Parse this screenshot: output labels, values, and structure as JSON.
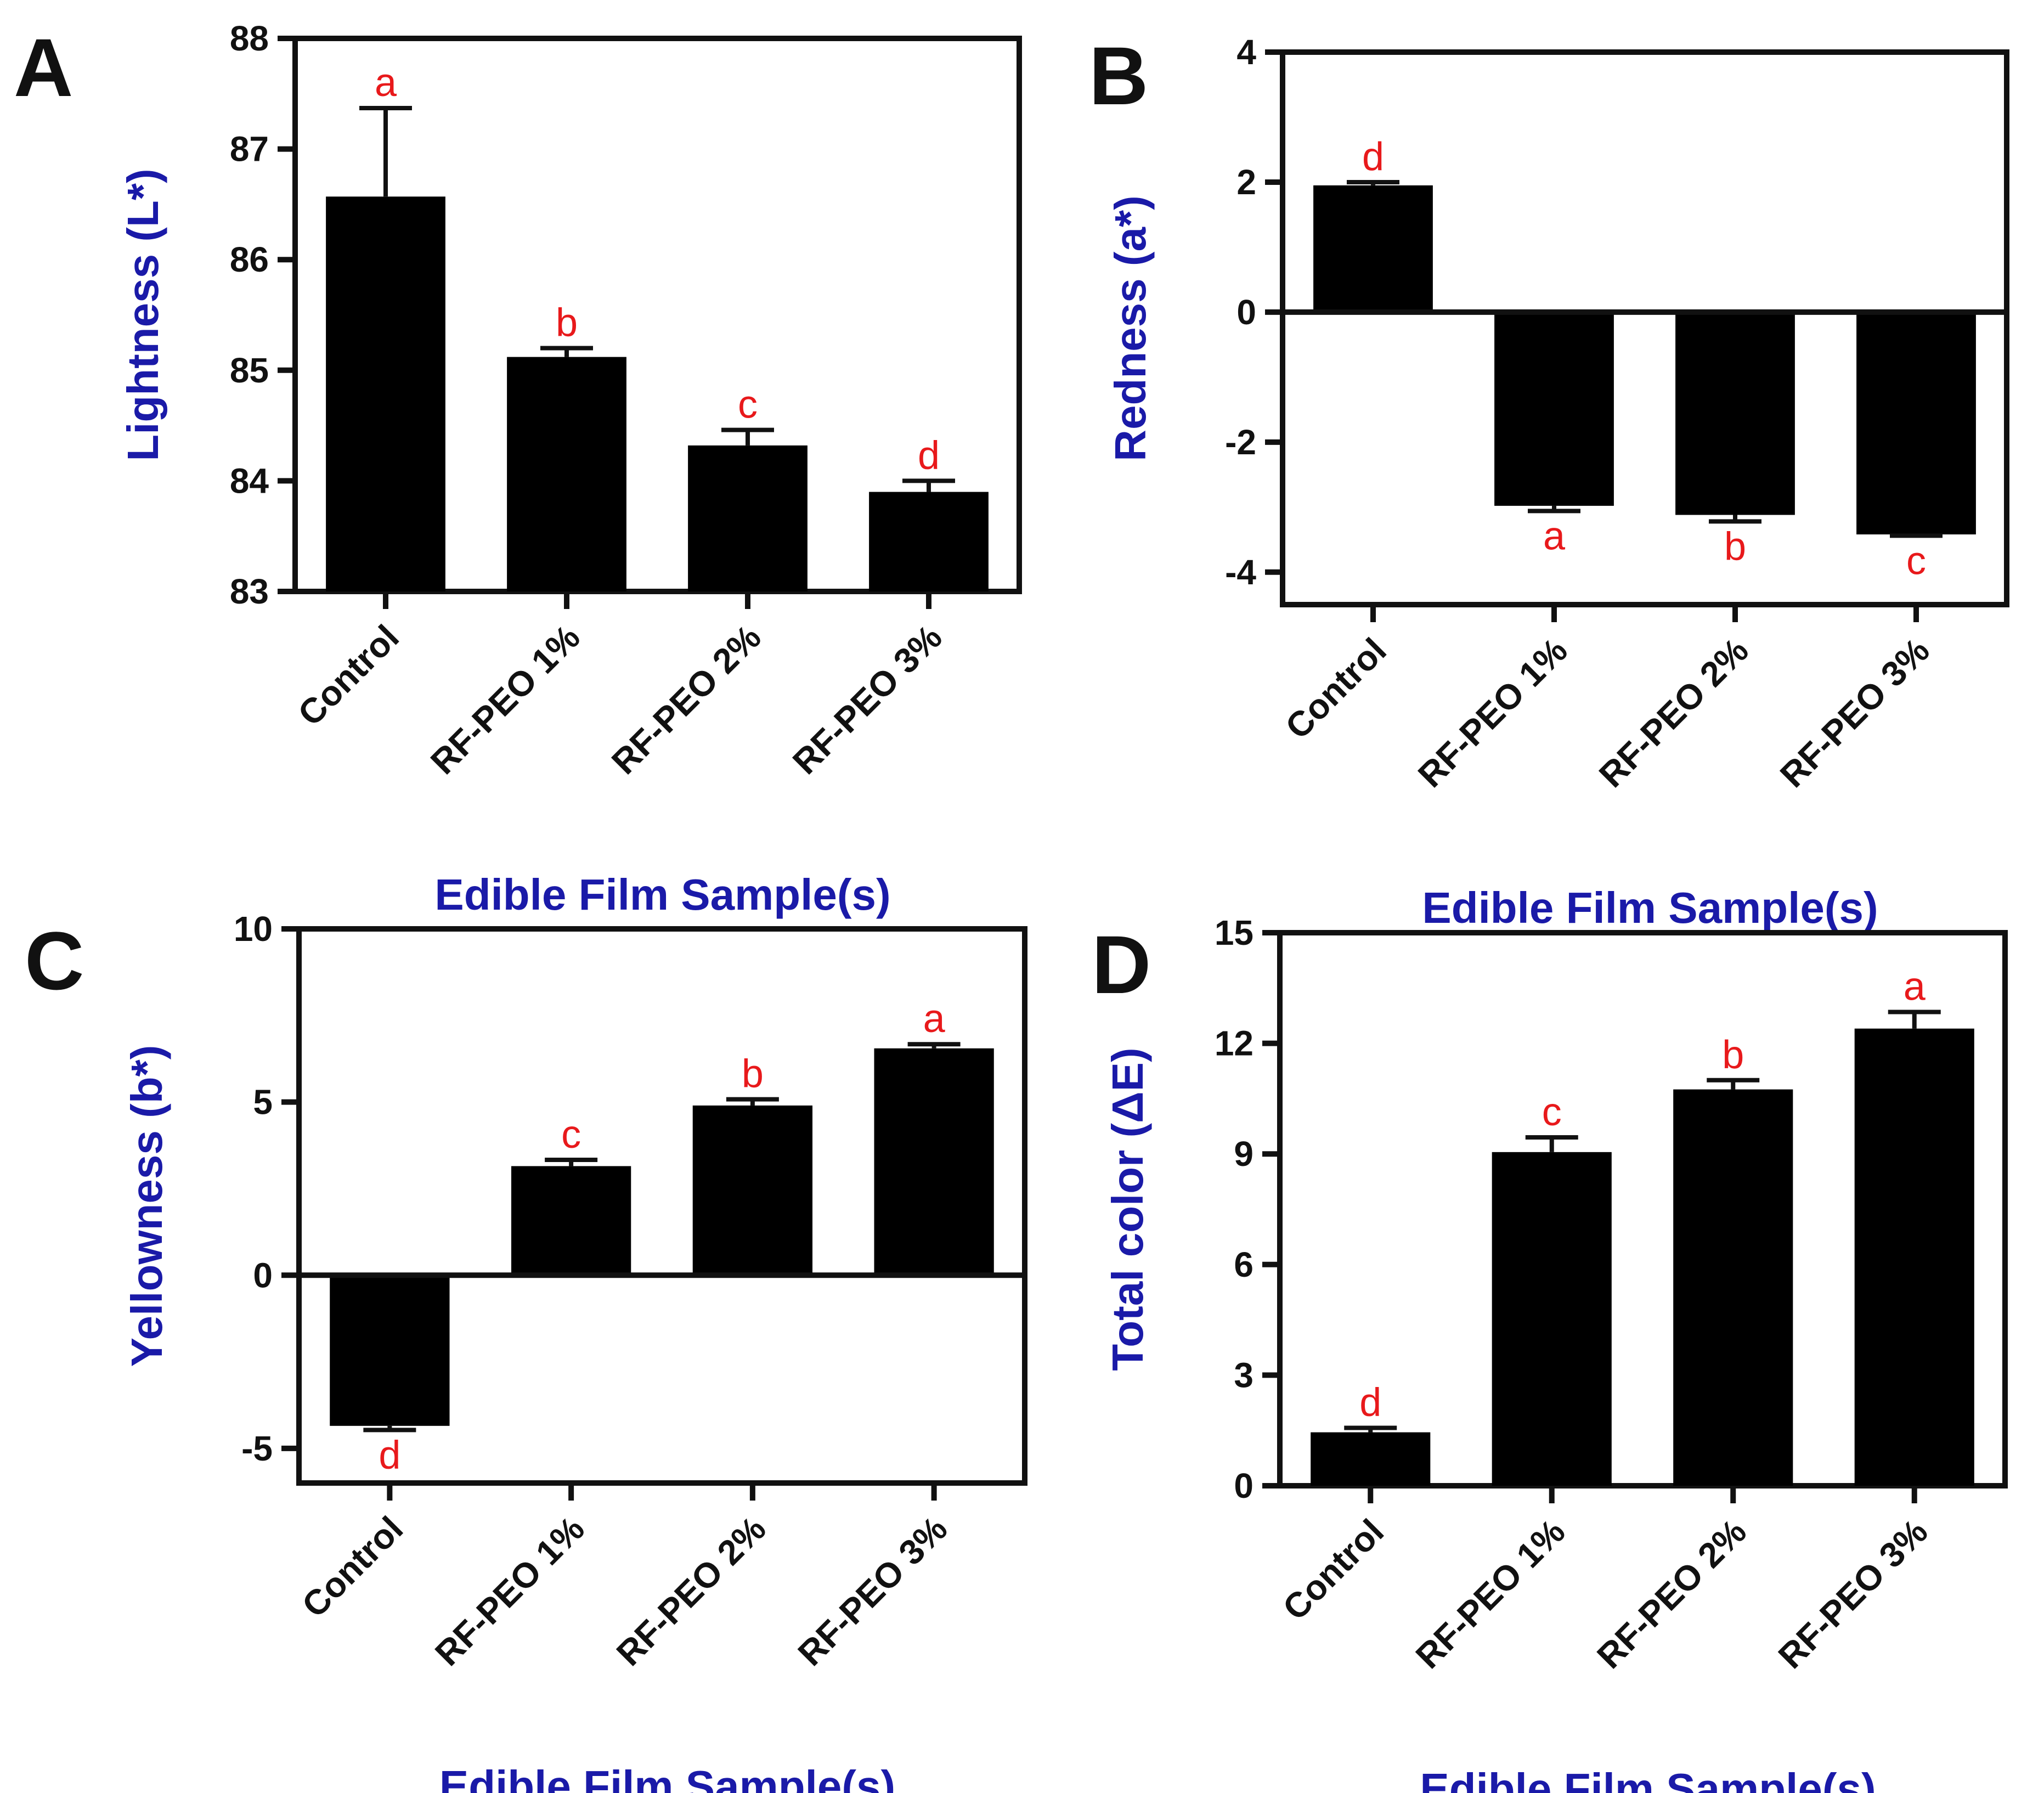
{
  "chart_data": [
    {
      "panel": "A",
      "type": "bar",
      "categories": [
        "Control",
        "RF-PEO 1%",
        "RF-PEO 2%",
        "RF-PEO 3%"
      ],
      "values": [
        86.57,
        85.12,
        84.32,
        83.9
      ],
      "errors": [
        0.8,
        0.08,
        0.14,
        0.1
      ],
      "letters": [
        "a",
        "b",
        "c",
        "d"
      ],
      "ylabel": "Lightness (L*)",
      "xlabel": "Edible Film Sample(s)",
      "ylim": [
        83,
        88
      ],
      "yticks": [
        83,
        84,
        85,
        86,
        87,
        88
      ],
      "ytick_labels": [
        "83",
        "84",
        "85",
        "86",
        "87",
        "88"
      ],
      "grid": false,
      "colors": {
        "bar": "#000000",
        "axis_title": "#1a1aa8",
        "letters": "#e8191b"
      }
    },
    {
      "panel": "B",
      "type": "bar",
      "categories": [
        "Control",
        "RF-PEO 1%",
        "RF-PEO 2%",
        "RF-PEO 3%"
      ],
      "values": [
        1.95,
        -2.98,
        -3.12,
        -3.42
      ],
      "errors": [
        0.05,
        0.08,
        0.1,
        0.02
      ],
      "letters": [
        "d",
        "a",
        "b",
        "c"
      ],
      "ylabel": "Redness (a*)",
      "xlabel": "Edible Film Sample(s)",
      "ylim": [
        -4.5,
        4
      ],
      "yticks": [
        -4,
        -2,
        0,
        2,
        4
      ],
      "ytick_labels": [
        "-4",
        "-2",
        "0",
        "2",
        "4"
      ],
      "grid": false,
      "colors": {
        "bar": "#000000",
        "axis_title": "#1a1aa8",
        "letters": "#e8191b"
      }
    },
    {
      "panel": "C",
      "type": "bar",
      "categories": [
        "Control",
        "RF-PEO 1%",
        "RF-PEO 2%",
        "RF-PEO 3%"
      ],
      "values": [
        -4.35,
        3.15,
        4.9,
        6.55
      ],
      "errors": [
        0.12,
        0.18,
        0.18,
        0.12
      ],
      "letters": [
        "d",
        "c",
        "b",
        "a"
      ],
      "ylabel": "Yellowness (b*)",
      "xlabel": "Edible Film Sample(s)",
      "ylim": [
        -6,
        10
      ],
      "yticks": [
        -5,
        0,
        5,
        10
      ],
      "ytick_labels": [
        "-5",
        "0",
        "5",
        "10"
      ],
      "grid": false,
      "colors": {
        "bar": "#000000",
        "axis_title": "#1a1aa8",
        "letters": "#e8191b"
      }
    },
    {
      "panel": "D",
      "type": "bar",
      "categories": [
        "Control",
        "RF-PEO 1%",
        "RF-PEO 2%",
        "RF-PEO 3%"
      ],
      "values": [
        1.45,
        9.05,
        10.75,
        12.4
      ],
      "errors": [
        0.12,
        0.4,
        0.25,
        0.45
      ],
      "letters": [
        "d",
        "c",
        "b",
        "a"
      ],
      "ylabel": "Total color (ΔE)",
      "xlabel": "Edible Film Sample(s)",
      "ylim": [
        0,
        15
      ],
      "yticks": [
        0,
        3,
        6,
        9,
        12,
        15
      ],
      "ytick_labels": [
        "0",
        "3",
        "6",
        "9",
        "12",
        "15"
      ],
      "grid": false,
      "colors": {
        "bar": "#000000",
        "axis_title": "#1a1aa8",
        "letters": "#e8191b"
      }
    }
  ]
}
